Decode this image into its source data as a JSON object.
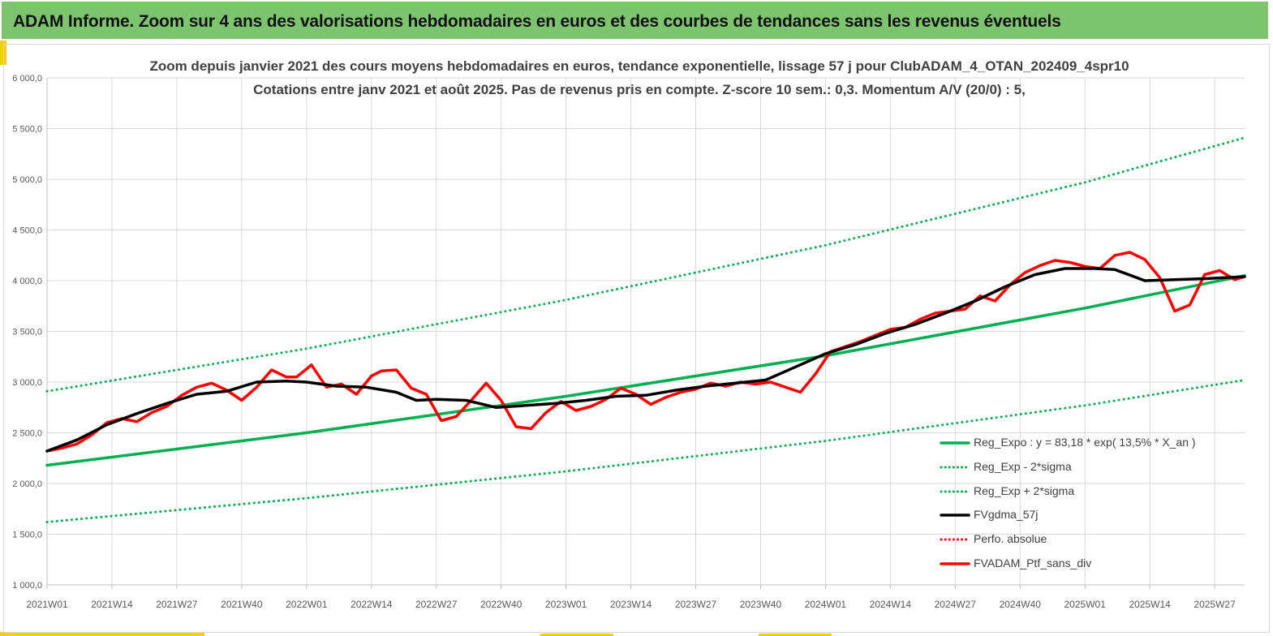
{
  "banner": {
    "title": "ADAM Informe. Zoom sur 4 ans des valorisations hebdomadaires en euros et des courbes de tendances sans les revenus éventuels"
  },
  "colors": {
    "banner_bg": "#7dc46f",
    "accent": "#f5d000",
    "reg_expo": "#00b050",
    "portfolio": "#ff0000",
    "moving_average": "#000000"
  },
  "chart_data": {
    "type": "line",
    "title": "Zoom depuis janvier 2021 des cours moyens hebdomadaires  en euros, tendance exponentielle, lissage 57 j pour ClubADAM_4_OTAN_202409_4spr10",
    "subtitle": "Cotations  entre janv 2021 et août 2025. Pas de revenus pris en compte. Z-score 10 sem.: 0,3. Momentum  A/V (20/0) : 5,",
    "xlabel": "",
    "ylabel": "",
    "ylim": [
      1000,
      6000
    ],
    "y_ticks": [
      "1 000,0",
      "1 500,0",
      "2 000,0",
      "2 500,0",
      "3 000,0",
      "3 500,0",
      "4 000,0",
      "4 500,0",
      "5 000,0",
      "5 500,0",
      "6 000,0"
    ],
    "y_tick_values": [
      1000,
      1500,
      2000,
      2500,
      3000,
      3500,
      4000,
      4500,
      5000,
      5500,
      6000
    ],
    "x_unit": "week index from 2021W01",
    "xlim": [
      0,
      240
    ],
    "x_ticks": [
      "2021W01",
      "2021W14",
      "2021W27",
      "2021W40",
      "2022W01",
      "2022W14",
      "2022W27",
      "2022W40",
      "2023W01",
      "2023W14",
      "2023W27",
      "2023W40",
      "2024W01",
      "2024W14",
      "2024W27",
      "2024W40",
      "2025W01",
      "2025W14",
      "2025W27"
    ],
    "x_tick_values": [
      0,
      13,
      26,
      39,
      52,
      65,
      78,
      91,
      104,
      117,
      130,
      143,
      156,
      169,
      182,
      195,
      208,
      221,
      234
    ],
    "grid": true,
    "legend_position": "bottom-right",
    "series": [
      {
        "name": "Reg_Expo : y = 83,18 * exp( 13,5% *  X_an )",
        "style": "solid",
        "color": "#00b050",
        "x": [
          0,
          52,
          104,
          156,
          208,
          240
        ],
        "y": [
          2180,
          2500,
          2860,
          3260,
          3730,
          4050
        ]
      },
      {
        "name": "Reg_Exp - 2*sigma",
        "style": "dotted",
        "color": "#00b050",
        "x": [
          0,
          52,
          104,
          156,
          208,
          240
        ],
        "y": [
          1620,
          1855,
          2120,
          2420,
          2770,
          3020
        ]
      },
      {
        "name": "Reg_Exp + 2*sigma",
        "style": "dotted",
        "color": "#00b050",
        "x": [
          0,
          52,
          104,
          156,
          208,
          240
        ],
        "y": [
          2910,
          3330,
          3810,
          4350,
          4970,
          5410
        ]
      },
      {
        "name": "FVgdma_57j",
        "style": "solid",
        "color": "#000000",
        "x": [
          0,
          6,
          12,
          18,
          24,
          30,
          36,
          42,
          48,
          52,
          58,
          64,
          70,
          74,
          78,
          84,
          90,
          96,
          102,
          108,
          114,
          120,
          126,
          132,
          138,
          144,
          150,
          156,
          162,
          168,
          174,
          180,
          186,
          192,
          198,
          204,
          210,
          214,
          220,
          226,
          232,
          240
        ],
        "y": [
          2320,
          2430,
          2580,
          2690,
          2790,
          2880,
          2910,
          3000,
          3010,
          3000,
          2960,
          2950,
          2900,
          2820,
          2830,
          2820,
          2750,
          2770,
          2790,
          2820,
          2860,
          2870,
          2920,
          2960,
          2990,
          3020,
          3150,
          3280,
          3370,
          3480,
          3570,
          3680,
          3800,
          3940,
          4060,
          4120,
          4120,
          4110,
          4000,
          4010,
          4020,
          4040
        ]
      },
      {
        "name": "Perfo. absolue",
        "style": "dotted",
        "color": "#ff0000",
        "x": [],
        "y": []
      },
      {
        "name": "FVADAM_Ptf_sans_div",
        "style": "solid",
        "color": "#ff0000",
        "x": [
          0,
          3,
          6,
          9,
          12,
          15,
          18,
          21,
          24,
          27,
          30,
          33,
          36,
          39,
          42,
          45,
          48,
          50,
          53,
          56,
          59,
          62,
          65,
          67,
          70,
          73,
          76,
          79,
          82,
          85,
          88,
          91,
          94,
          97,
          100,
          103,
          106,
          109,
          112,
          115,
          118,
          121,
          124,
          127,
          130,
          133,
          136,
          139,
          142,
          145,
          148,
          151,
          154,
          157,
          160,
          163,
          166,
          169,
          172,
          175,
          178,
          181,
          184,
          187,
          190,
          193,
          196,
          199,
          202,
          205,
          208,
          211,
          214,
          217,
          220,
          223,
          226,
          229,
          232,
          235,
          238,
          240
        ],
        "y": [
          2320,
          2350,
          2390,
          2480,
          2600,
          2640,
          2610,
          2700,
          2760,
          2870,
          2950,
          2990,
          2920,
          2820,
          2950,
          3120,
          3050,
          3050,
          3170,
          2950,
          2980,
          2880,
          3060,
          3110,
          3120,
          2940,
          2880,
          2620,
          2660,
          2820,
          2990,
          2820,
          2560,
          2540,
          2700,
          2810,
          2720,
          2760,
          2830,
          2940,
          2880,
          2780,
          2850,
          2900,
          2930,
          2990,
          2960,
          3000,
          2980,
          3000,
          2950,
          2900,
          3080,
          3300,
          3350,
          3400,
          3460,
          3520,
          3540,
          3620,
          3680,
          3700,
          3720,
          3850,
          3800,
          3960,
          4080,
          4150,
          4200,
          4180,
          4140,
          4120,
          4250,
          4280,
          4210,
          4030,
          3700,
          3760,
          4060,
          4100,
          4010,
          4040
        ]
      }
    ]
  }
}
